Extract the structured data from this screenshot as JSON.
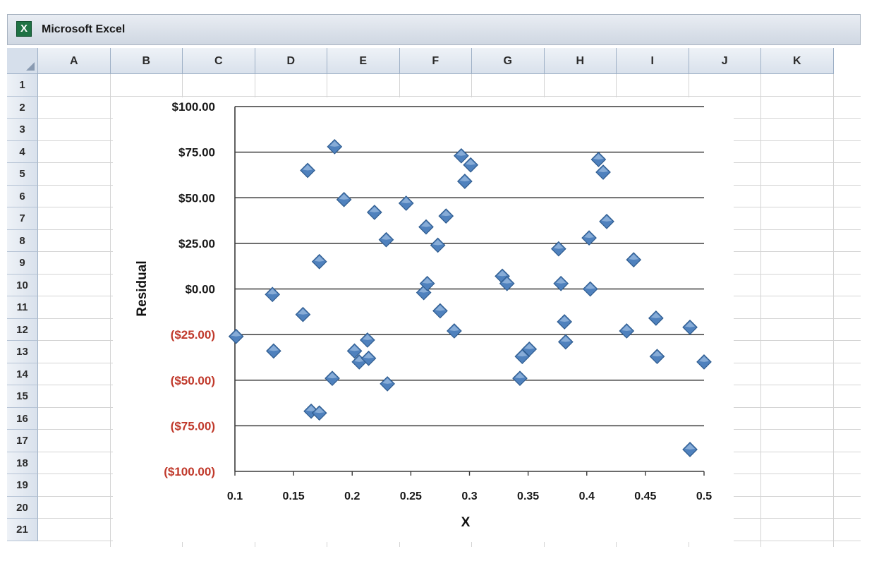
{
  "app": {
    "title": "Microsoft Excel",
    "icon": "excel-icon"
  },
  "sheet": {
    "columns": [
      "A",
      "B",
      "C",
      "D",
      "E",
      "F",
      "G",
      "H",
      "I",
      "J",
      "K"
    ],
    "rows": [
      "1",
      "2",
      "3",
      "4",
      "5",
      "6",
      "7",
      "8",
      "9",
      "10",
      "11",
      "12",
      "13",
      "14",
      "15",
      "16",
      "17",
      "18",
      "19",
      "20",
      "21"
    ]
  },
  "chart_data": {
    "type": "scatter",
    "xlabel": "X",
    "ylabel": "Residual",
    "xlim": [
      0.1,
      0.5
    ],
    "ylim": [
      -100,
      100
    ],
    "x_ticks": [
      "0.1",
      "0.15",
      "0.2",
      "0.25",
      "0.3",
      "0.35",
      "0.4",
      "0.45",
      "0.5"
    ],
    "y_ticks": [
      "$100.00",
      "$75.00",
      "$50.00",
      "$25.00",
      "$0.00",
      "($25.00)",
      "($50.00)",
      "($75.00)",
      "($100.00)"
    ],
    "y_tick_values": [
      100,
      75,
      50,
      25,
      0,
      -25,
      -50,
      -75,
      -100
    ],
    "negative_label_color": "#c0392b",
    "positive_label_color": "#1a1a1a",
    "marker_color": "#4f81bd",
    "grid": true,
    "legend": "none",
    "points": [
      {
        "x": 0.101,
        "y": -26
      },
      {
        "x": 0.132,
        "y": -3
      },
      {
        "x": 0.133,
        "y": -34
      },
      {
        "x": 0.158,
        "y": -14
      },
      {
        "x": 0.162,
        "y": 65
      },
      {
        "x": 0.165,
        "y": -67
      },
      {
        "x": 0.172,
        "y": 15
      },
      {
        "x": 0.172,
        "y": -68
      },
      {
        "x": 0.183,
        "y": -49
      },
      {
        "x": 0.185,
        "y": 78
      },
      {
        "x": 0.193,
        "y": 49
      },
      {
        "x": 0.202,
        "y": -34
      },
      {
        "x": 0.206,
        "y": -40
      },
      {
        "x": 0.213,
        "y": -28
      },
      {
        "x": 0.214,
        "y": -38
      },
      {
        "x": 0.219,
        "y": 42
      },
      {
        "x": 0.229,
        "y": 27
      },
      {
        "x": 0.23,
        "y": -52
      },
      {
        "x": 0.246,
        "y": 47
      },
      {
        "x": 0.261,
        "y": -2
      },
      {
        "x": 0.263,
        "y": 34
      },
      {
        "x": 0.264,
        "y": 3
      },
      {
        "x": 0.273,
        "y": 24
      },
      {
        "x": 0.275,
        "y": -12
      },
      {
        "x": 0.28,
        "y": 40
      },
      {
        "x": 0.287,
        "y": -23
      },
      {
        "x": 0.293,
        "y": 73
      },
      {
        "x": 0.296,
        "y": 59
      },
      {
        "x": 0.301,
        "y": 68
      },
      {
        "x": 0.328,
        "y": 7
      },
      {
        "x": 0.332,
        "y": 3
      },
      {
        "x": 0.343,
        "y": -49
      },
      {
        "x": 0.345,
        "y": -37
      },
      {
        "x": 0.351,
        "y": -33
      },
      {
        "x": 0.376,
        "y": 22
      },
      {
        "x": 0.378,
        "y": 3
      },
      {
        "x": 0.381,
        "y": -18
      },
      {
        "x": 0.382,
        "y": -29
      },
      {
        "x": 0.402,
        "y": 28
      },
      {
        "x": 0.403,
        "y": 0
      },
      {
        "x": 0.41,
        "y": 71
      },
      {
        "x": 0.414,
        "y": 64
      },
      {
        "x": 0.417,
        "y": 37
      },
      {
        "x": 0.434,
        "y": -23
      },
      {
        "x": 0.44,
        "y": 16
      },
      {
        "x": 0.459,
        "y": -16
      },
      {
        "x": 0.46,
        "y": -37
      },
      {
        "x": 0.488,
        "y": -21
      },
      {
        "x": 0.488,
        "y": -88
      },
      {
        "x": 0.5,
        "y": -40
      }
    ]
  }
}
